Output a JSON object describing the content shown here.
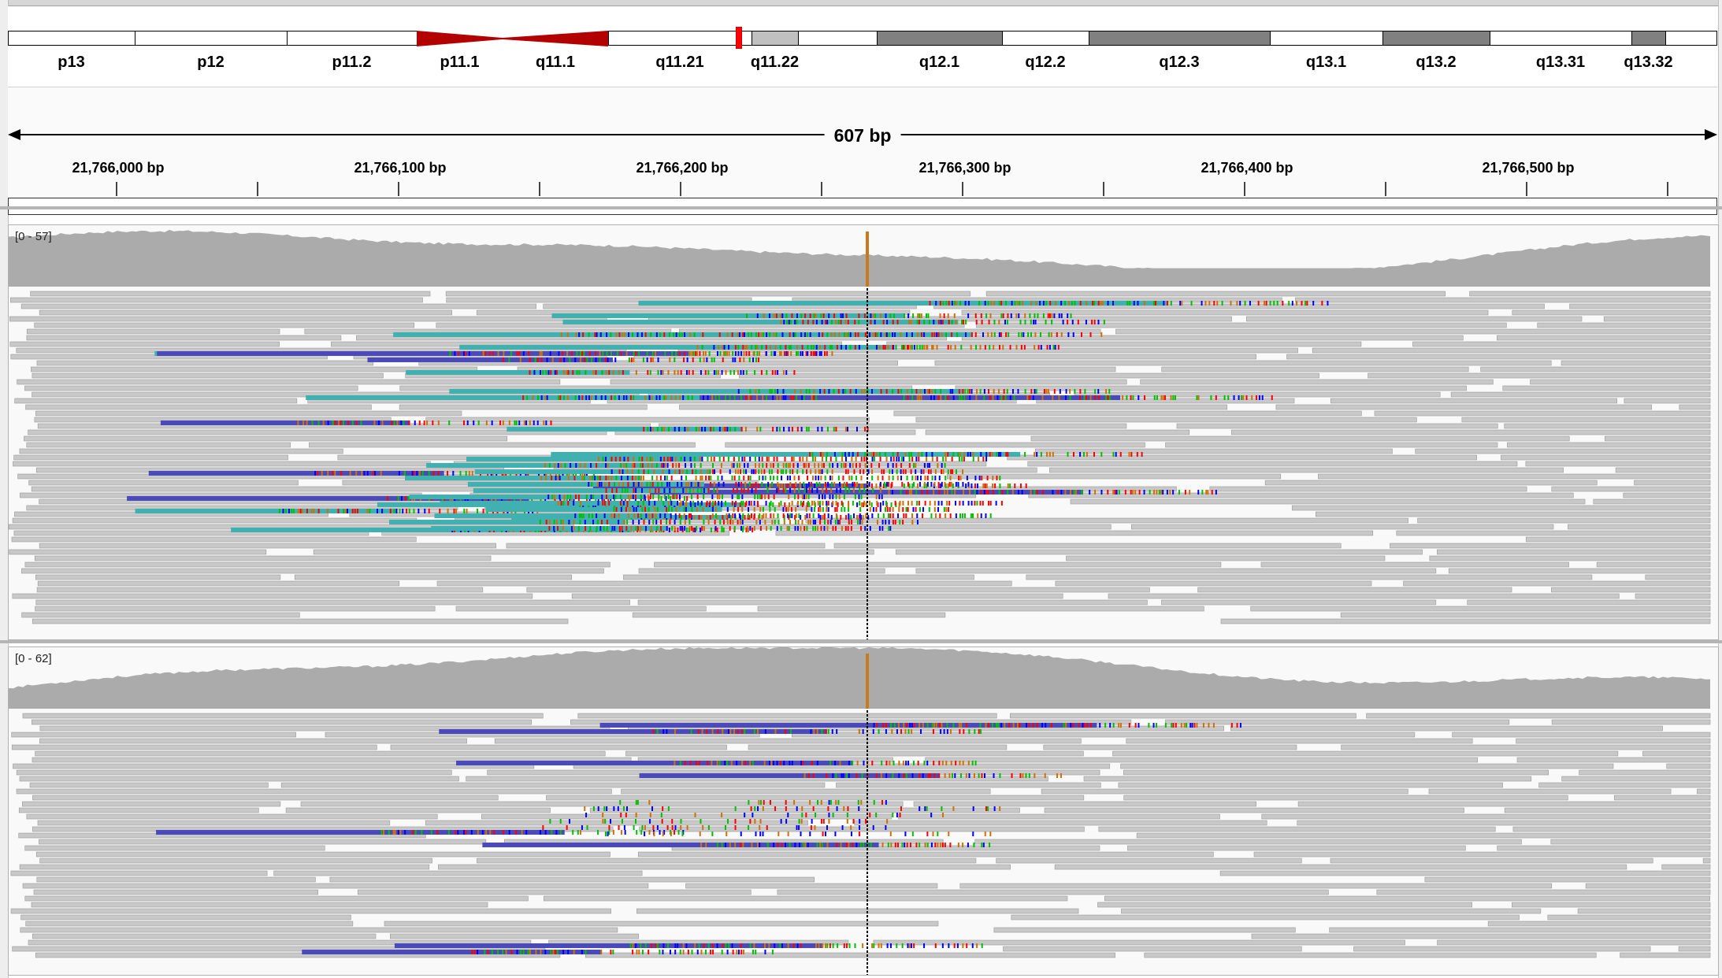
{
  "colors": {
    "centromere": "#b30000",
    "band_gneg": "#ffffff",
    "band_gpos50": "#808080",
    "band_gpos25": "#c0c0c0",
    "coverage": "#ababab",
    "read": "#c8c8c8",
    "read_teal": "#41b0b0",
    "read_blue": "#4a4ab8",
    "mismatch_a": "#00c000",
    "mismatch_c": "#0000ff",
    "mismatch_g": "#d17105",
    "mismatch_t": "#ff0000",
    "cursor": "#000000",
    "coverage_alt": "#c97a1f"
  },
  "ideogram": {
    "bands": [
      {
        "name": "p13",
        "stain": "gneg"
      },
      {
        "name": "p12",
        "stain": "gneg"
      },
      {
        "name": "p11.2",
        "stain": "gneg"
      },
      {
        "name": "p11.1",
        "stain": "acen"
      },
      {
        "name": "q11.1",
        "stain": "acen"
      },
      {
        "name": "q11.21",
        "stain": "gneg"
      },
      {
        "name": "q11.22",
        "stain": "gpos25"
      },
      {
        "name": "q12.1",
        "stain": "gpos50"
      },
      {
        "name": "q12.2",
        "stain": "gneg"
      },
      {
        "name": "q12.3",
        "stain": "gpos50"
      },
      {
        "name": "q13.1",
        "stain": "gneg"
      },
      {
        "name": "q13.2",
        "stain": "gpos50"
      },
      {
        "name": "q13.31",
        "stain": "gneg"
      },
      {
        "name": "q13.32",
        "stain": "gpos50"
      }
    ],
    "current_location_marker": "red-marker"
  },
  "ruler": {
    "span_label": "607 bp",
    "ticks": [
      "21,766,000 bp",
      "21,766,100 bp",
      "21,766,200 bp",
      "21,766,300 bp",
      "21,766,400 bp",
      "21,766,500 bp"
    ]
  },
  "tracks": [
    {
      "name": "alignment-track-1",
      "range": "[0 - 57]"
    },
    {
      "name": "alignment-track-2",
      "range": "[0 - 62]"
    }
  ]
}
